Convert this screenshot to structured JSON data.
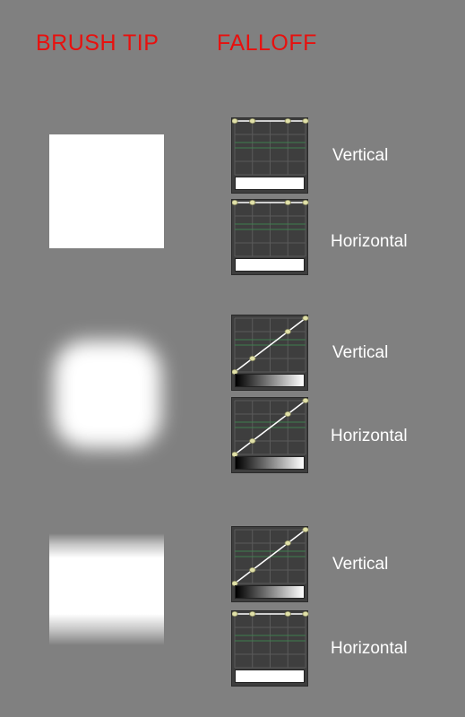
{
  "headers": {
    "brush_tip": "BRUSH TIP",
    "falloff": "FALLOFF"
  },
  "rows": [
    {
      "tip": "hard-square",
      "falloffs": [
        {
          "label": "Vertical",
          "curve": "flat"
        },
        {
          "label": "Horizontal",
          "curve": "flat"
        }
      ]
    },
    {
      "tip": "soft-rounded-square",
      "falloffs": [
        {
          "label": "Vertical",
          "curve": "linear"
        },
        {
          "label": "Horizontal",
          "curve": "linear"
        }
      ]
    },
    {
      "tip": "vertically-faded-square",
      "falloffs": [
        {
          "label": "Vertical",
          "curve": "linear"
        },
        {
          "label": "Horizontal",
          "curve": "flat"
        }
      ]
    }
  ],
  "colors": {
    "background": "#808080",
    "header": "#e8100e",
    "label": "#ffffff",
    "graph_bg": "#3e3e3e",
    "grid": "#5a5a5a",
    "guide": "#3f7f4f",
    "curve_line": "#ffffff",
    "control_point": "#e0e0a8"
  }
}
